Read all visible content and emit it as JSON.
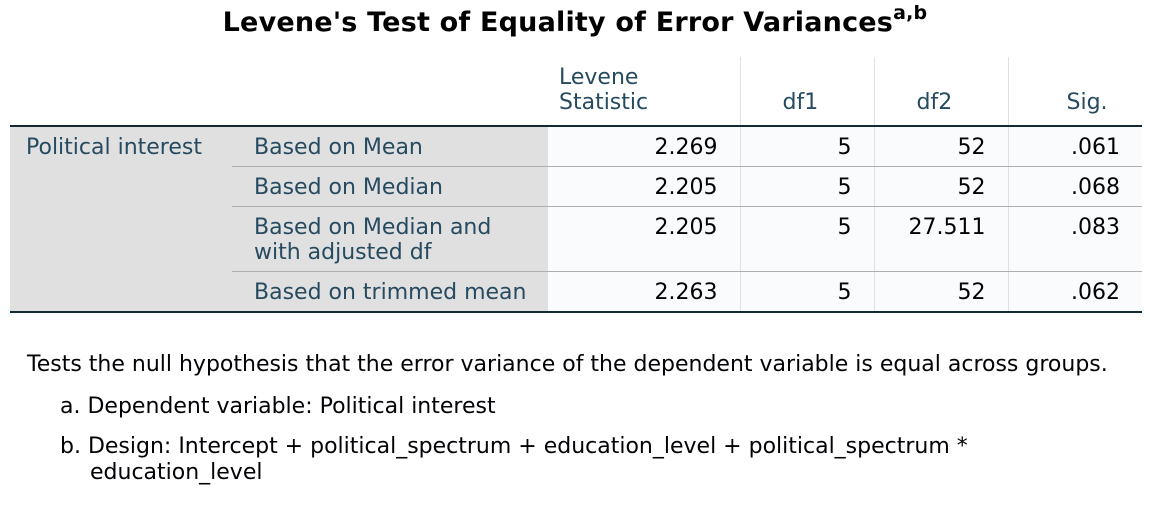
{
  "title": {
    "text": "Levene's Test of Equality of Error Variances",
    "superscript": "a,b"
  },
  "table": {
    "columns": [
      "Levene Statistic",
      "df1",
      "df2",
      "Sig."
    ],
    "row_group": "Political interest",
    "rows": [
      {
        "label": "Based on Mean",
        "levene_statistic": "2.269",
        "df1": "5",
        "df2": "52",
        "sig": ".061"
      },
      {
        "label": "Based on Median",
        "levene_statistic": "2.205",
        "df1": "5",
        "df2": "52",
        "sig": ".068"
      },
      {
        "label": "Based on Median and with adjusted df",
        "levene_statistic": "2.205",
        "df1": "5",
        "df2": "27.511",
        "sig": ".083"
      },
      {
        "label": "Based on trimmed mean",
        "levene_statistic": "2.263",
        "df1": "5",
        "df2": "52",
        "sig": ".062"
      }
    ]
  },
  "footnotes": {
    "note": "Tests the null hypothesis that the error variance of the dependent variable is equal across groups.",
    "items": [
      "a. Dependent variable: Political interest",
      "b. Design: Intercept + political_spectrum + education_level + political_spectrum * education_level"
    ]
  }
}
